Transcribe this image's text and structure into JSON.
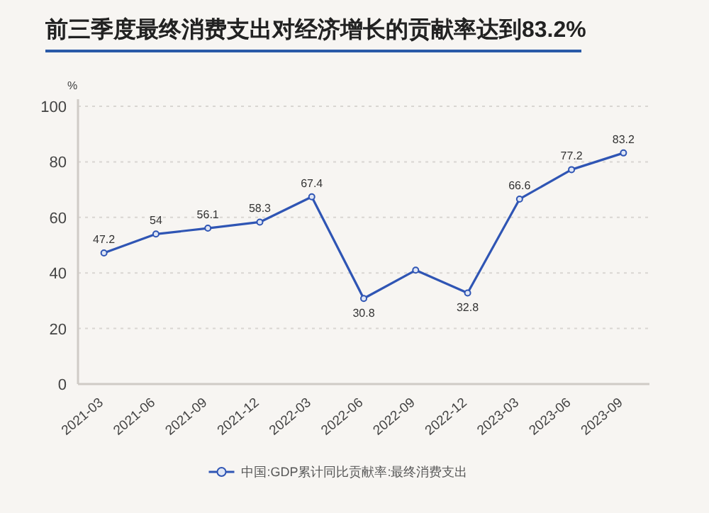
{
  "chart_data": {
    "type": "line",
    "title": "前三季度最终消费支出对经济增长的贡献率达到83.2%",
    "ylabel": "%",
    "categories": [
      "2021-03",
      "2021-06",
      "2021-09",
      "2021-12",
      "2022-03",
      "2022-06",
      "2022-09",
      "2022-12",
      "2023-03",
      "2023-06",
      "2023-09"
    ],
    "series": [
      {
        "name": "中国:GDP累计同比贡献率:最终消费支出",
        "color": "#2f55b4",
        "values": [
          47.2,
          54,
          56.1,
          58.3,
          67.4,
          30.8,
          41,
          32.8,
          66.6,
          77.2,
          83.2
        ],
        "value_labels": [
          "47.2",
          "54",
          "56.1",
          "58.3",
          "67.4",
          "30.8",
          null,
          "32.8",
          "66.6",
          "77.2",
          "83.2"
        ]
      }
    ],
    "ylim": [
      0,
      100
    ],
    "yticks": [
      0,
      20,
      40,
      60,
      80,
      100
    ],
    "grid": "y",
    "legend": "bottom",
    "marker": "circle"
  }
}
